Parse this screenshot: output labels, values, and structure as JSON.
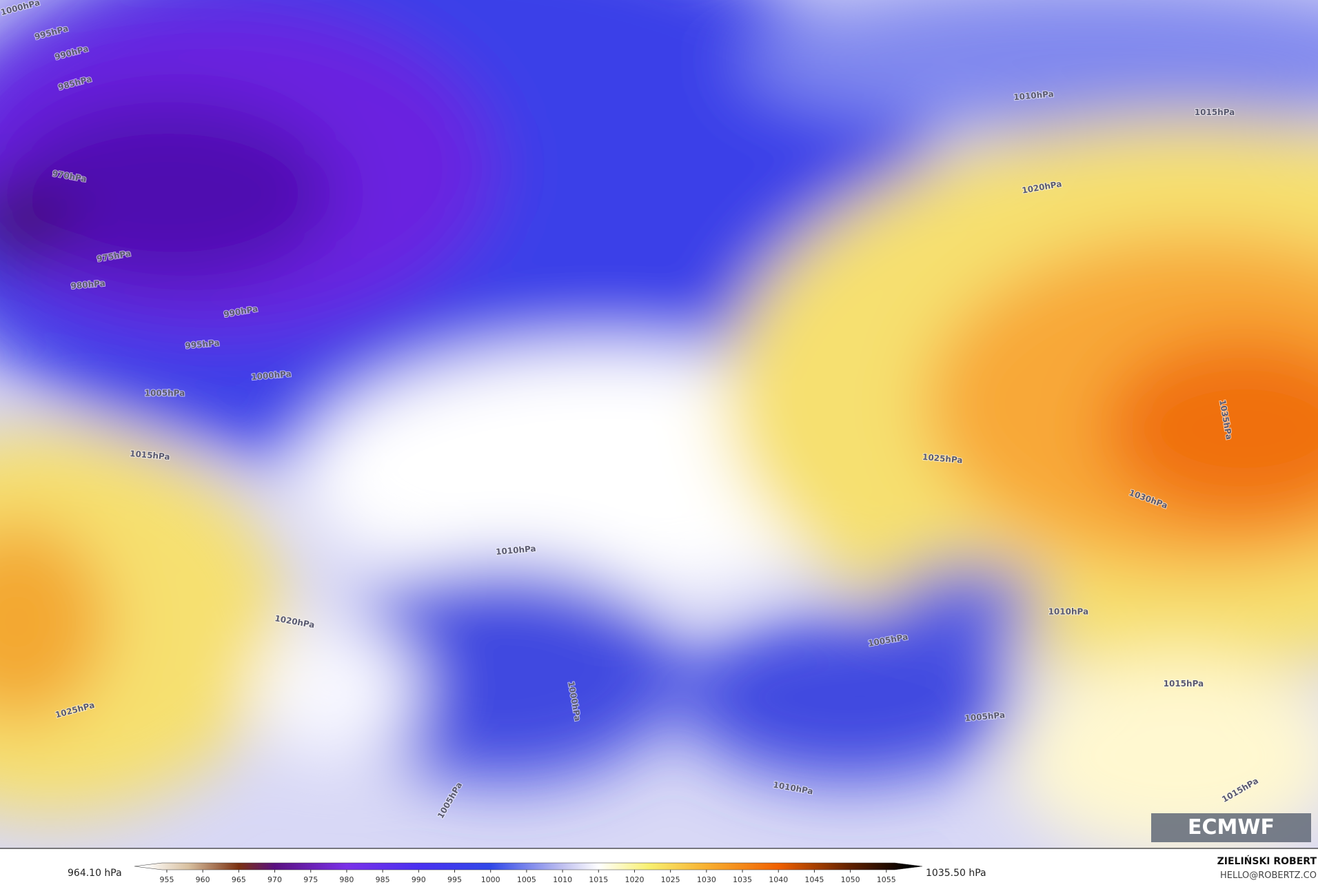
{
  "contour_labels": [
    "1000hPa",
    "995hPa",
    "990hPa",
    "985hPa",
    "970hPa",
    "975hPa",
    "980hPa",
    "990hPa",
    "995hPa",
    "1000hPa",
    "1005hPa",
    "1015hPa",
    "1010hPa",
    "1015hPa",
    "1020hPa",
    "1025hPa",
    "1030hPa",
    "1035hPa",
    "1010hPa",
    "1020hPa",
    "1025hPa",
    "1010hPa",
    "1005hPa",
    "1015hPa",
    "1005hPa",
    "1000hPa",
    "1005hPa",
    "1010hPa",
    "1015hPa"
  ],
  "colorbar": {
    "min_label": "964.10 hPa",
    "max_label": "1035.50 hPa",
    "lim": [
      950.5,
      1060
    ],
    "ticks": [
      955,
      960,
      965,
      970,
      975,
      980,
      985,
      990,
      995,
      1000,
      1005,
      1010,
      1015,
      1020,
      1025,
      1030,
      1035,
      1040,
      1045,
      1050,
      1055
    ],
    "stops": [
      {
        "value": 952,
        "color": "#ffffff"
      },
      {
        "value": 958,
        "color": "#d8c0a0"
      },
      {
        "value": 965,
        "color": "#7a3010"
      },
      {
        "value": 970,
        "color": "#5a1080"
      },
      {
        "value": 980,
        "color": "#7a30e8"
      },
      {
        "value": 990,
        "color": "#4a30f0"
      },
      {
        "value": 1000,
        "color": "#3048e8"
      },
      {
        "value": 1010,
        "color": "#c0c0f0"
      },
      {
        "value": 1015,
        "color": "#ffffff"
      },
      {
        "value": 1022,
        "color": "#f8f070"
      },
      {
        "value": 1030,
        "color": "#f8b030"
      },
      {
        "value": 1040,
        "color": "#f06000"
      },
      {
        "value": 1050,
        "color": "#602000"
      },
      {
        "value": 1058,
        "color": "#000000"
      }
    ]
  },
  "logo": "ECMWF",
  "credits": {
    "author": "ZIELIŃSKI ROBERT",
    "email": "HELLO@ROBERTZ.CO"
  }
}
